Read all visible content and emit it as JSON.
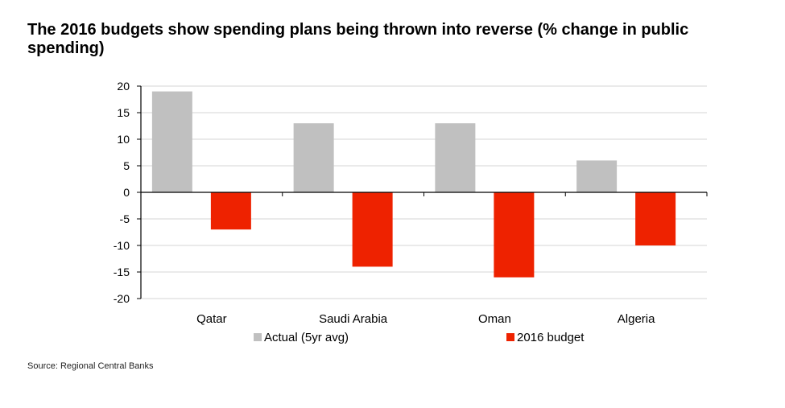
{
  "chart_data": {
    "type": "bar",
    "title": "The 2016 budgets show spending plans being thrown into reverse (% change in public spending)",
    "categories": [
      "Qatar",
      "Saudi Arabia",
      "Oman",
      "Algeria"
    ],
    "series": [
      {
        "name": "Actual (5yr avg)",
        "values": [
          19,
          13,
          13,
          6
        ],
        "color": "#c0c0c0"
      },
      {
        "name": "2016 budget",
        "values": [
          -7,
          -14,
          -16,
          -10
        ],
        "color": "#ee2200"
      }
    ],
    "yticks": [
      "20",
      "15",
      "10",
      "5",
      "0",
      "-5",
      "-10",
      "-15",
      "-20"
    ],
    "ylim": [
      -20,
      20
    ],
    "xlabel": "",
    "ylabel": "",
    "grid": true,
    "legend_position": "bottom"
  },
  "source": "Source: Regional Central Banks"
}
